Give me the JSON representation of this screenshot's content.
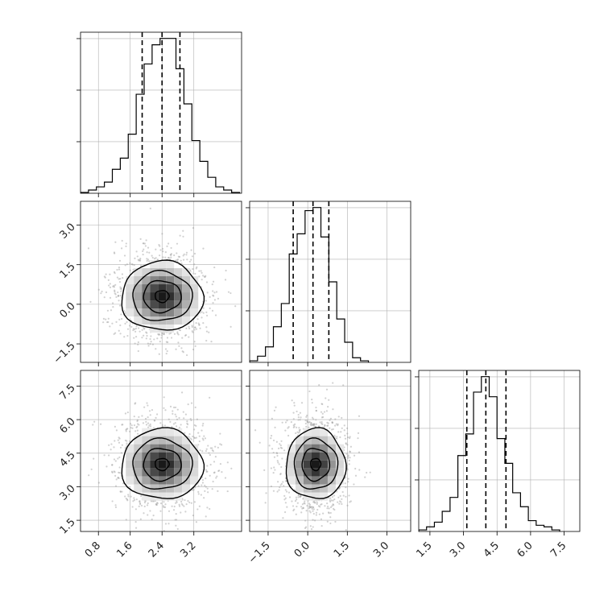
{
  "chart_data": {
    "type": "corner",
    "colors": {
      "line": "#000000",
      "grid": "#b0b0b0",
      "scatter": "#9a9a9a"
    },
    "parameters": [
      {
        "index": 0,
        "range": [
          0.35,
          4.4
        ],
        "ticks": [
          0.8,
          1.6,
          2.4,
          3.2
        ],
        "tick_labels": [
          "0.8",
          "1.6",
          "2.4",
          "3.2"
        ],
        "quantiles": [
          1.9,
          2.4,
          2.85
        ]
      },
      {
        "index": 1,
        "range": [
          -2.2,
          3.9
        ],
        "ticks": [
          -1.5,
          0.0,
          1.5,
          3.0
        ],
        "tick_labels": [
          "−1.5",
          "0.0",
          "1.5",
          "3.0"
        ],
        "quantiles": [
          -0.55,
          0.2,
          0.8
        ]
      },
      {
        "index": 2,
        "range": [
          1.0,
          8.2
        ],
        "ticks": [
          1.5,
          3.0,
          4.5,
          6.0,
          7.5
        ],
        "tick_labels": [
          "1.5",
          "3.0",
          "4.5",
          "6.0",
          "7.5"
        ],
        "quantiles": [
          3.15,
          4.0,
          4.9
        ]
      }
    ],
    "histograms": [
      {
        "param": 0,
        "bin_edges": [
          0.35,
          0.55,
          0.75,
          0.95,
          1.15,
          1.35,
          1.55,
          1.75,
          1.95,
          2.15,
          2.35,
          2.55,
          2.75,
          2.95,
          3.15,
          3.35,
          3.55,
          3.75,
          3.95,
          4.15,
          4.35
        ],
        "counts": [
          0.005,
          0.02,
          0.04,
          0.07,
          0.15,
          0.22,
          0.37,
          0.62,
          0.81,
          0.93,
          0.97,
          0.97,
          0.78,
          0.56,
          0.33,
          0.2,
          0.1,
          0.04,
          0.02,
          0.005
        ]
      },
      {
        "param": 1,
        "bin_edges": [
          -2.2,
          -1.9,
          -1.6,
          -1.3,
          -1.0,
          -0.7,
          -0.4,
          -0.1,
          0.2,
          0.5,
          0.8,
          1.1,
          1.4,
          1.7,
          2.0,
          2.3
        ],
        "counts": [
          0.01,
          0.04,
          0.1,
          0.23,
          0.38,
          0.7,
          0.83,
          0.98,
          1.0,
          0.81,
          0.52,
          0.28,
          0.13,
          0.03,
          0.01
        ]
      },
      {
        "param": 2,
        "bin_edges": [
          1.0,
          1.35,
          1.7,
          2.05,
          2.4,
          2.75,
          3.1,
          3.45,
          3.8,
          4.15,
          4.5,
          4.85,
          5.2,
          5.55,
          5.9,
          6.25,
          6.6,
          6.95,
          7.3
        ],
        "counts": [
          0.01,
          0.03,
          0.06,
          0.13,
          0.22,
          0.49,
          0.63,
          0.9,
          1.0,
          0.87,
          0.6,
          0.44,
          0.25,
          0.16,
          0.07,
          0.04,
          0.03,
          0.01
        ]
      }
    ],
    "joint": [
      {
        "x_param": 0,
        "y_param": 1,
        "center": [
          2.4,
          0.3
        ],
        "sigma": [
          0.5,
          0.75
        ]
      },
      {
        "x_param": 0,
        "y_param": 2,
        "center": [
          2.4,
          4.0
        ],
        "sigma": [
          0.5,
          0.9
        ]
      },
      {
        "x_param": 1,
        "y_param": 2,
        "center": [
          0.3,
          4.0
        ],
        "sigma": [
          0.55,
          0.9
        ]
      }
    ],
    "grid": true,
    "title": "",
    "xlabel": "",
    "ylabel": ""
  }
}
